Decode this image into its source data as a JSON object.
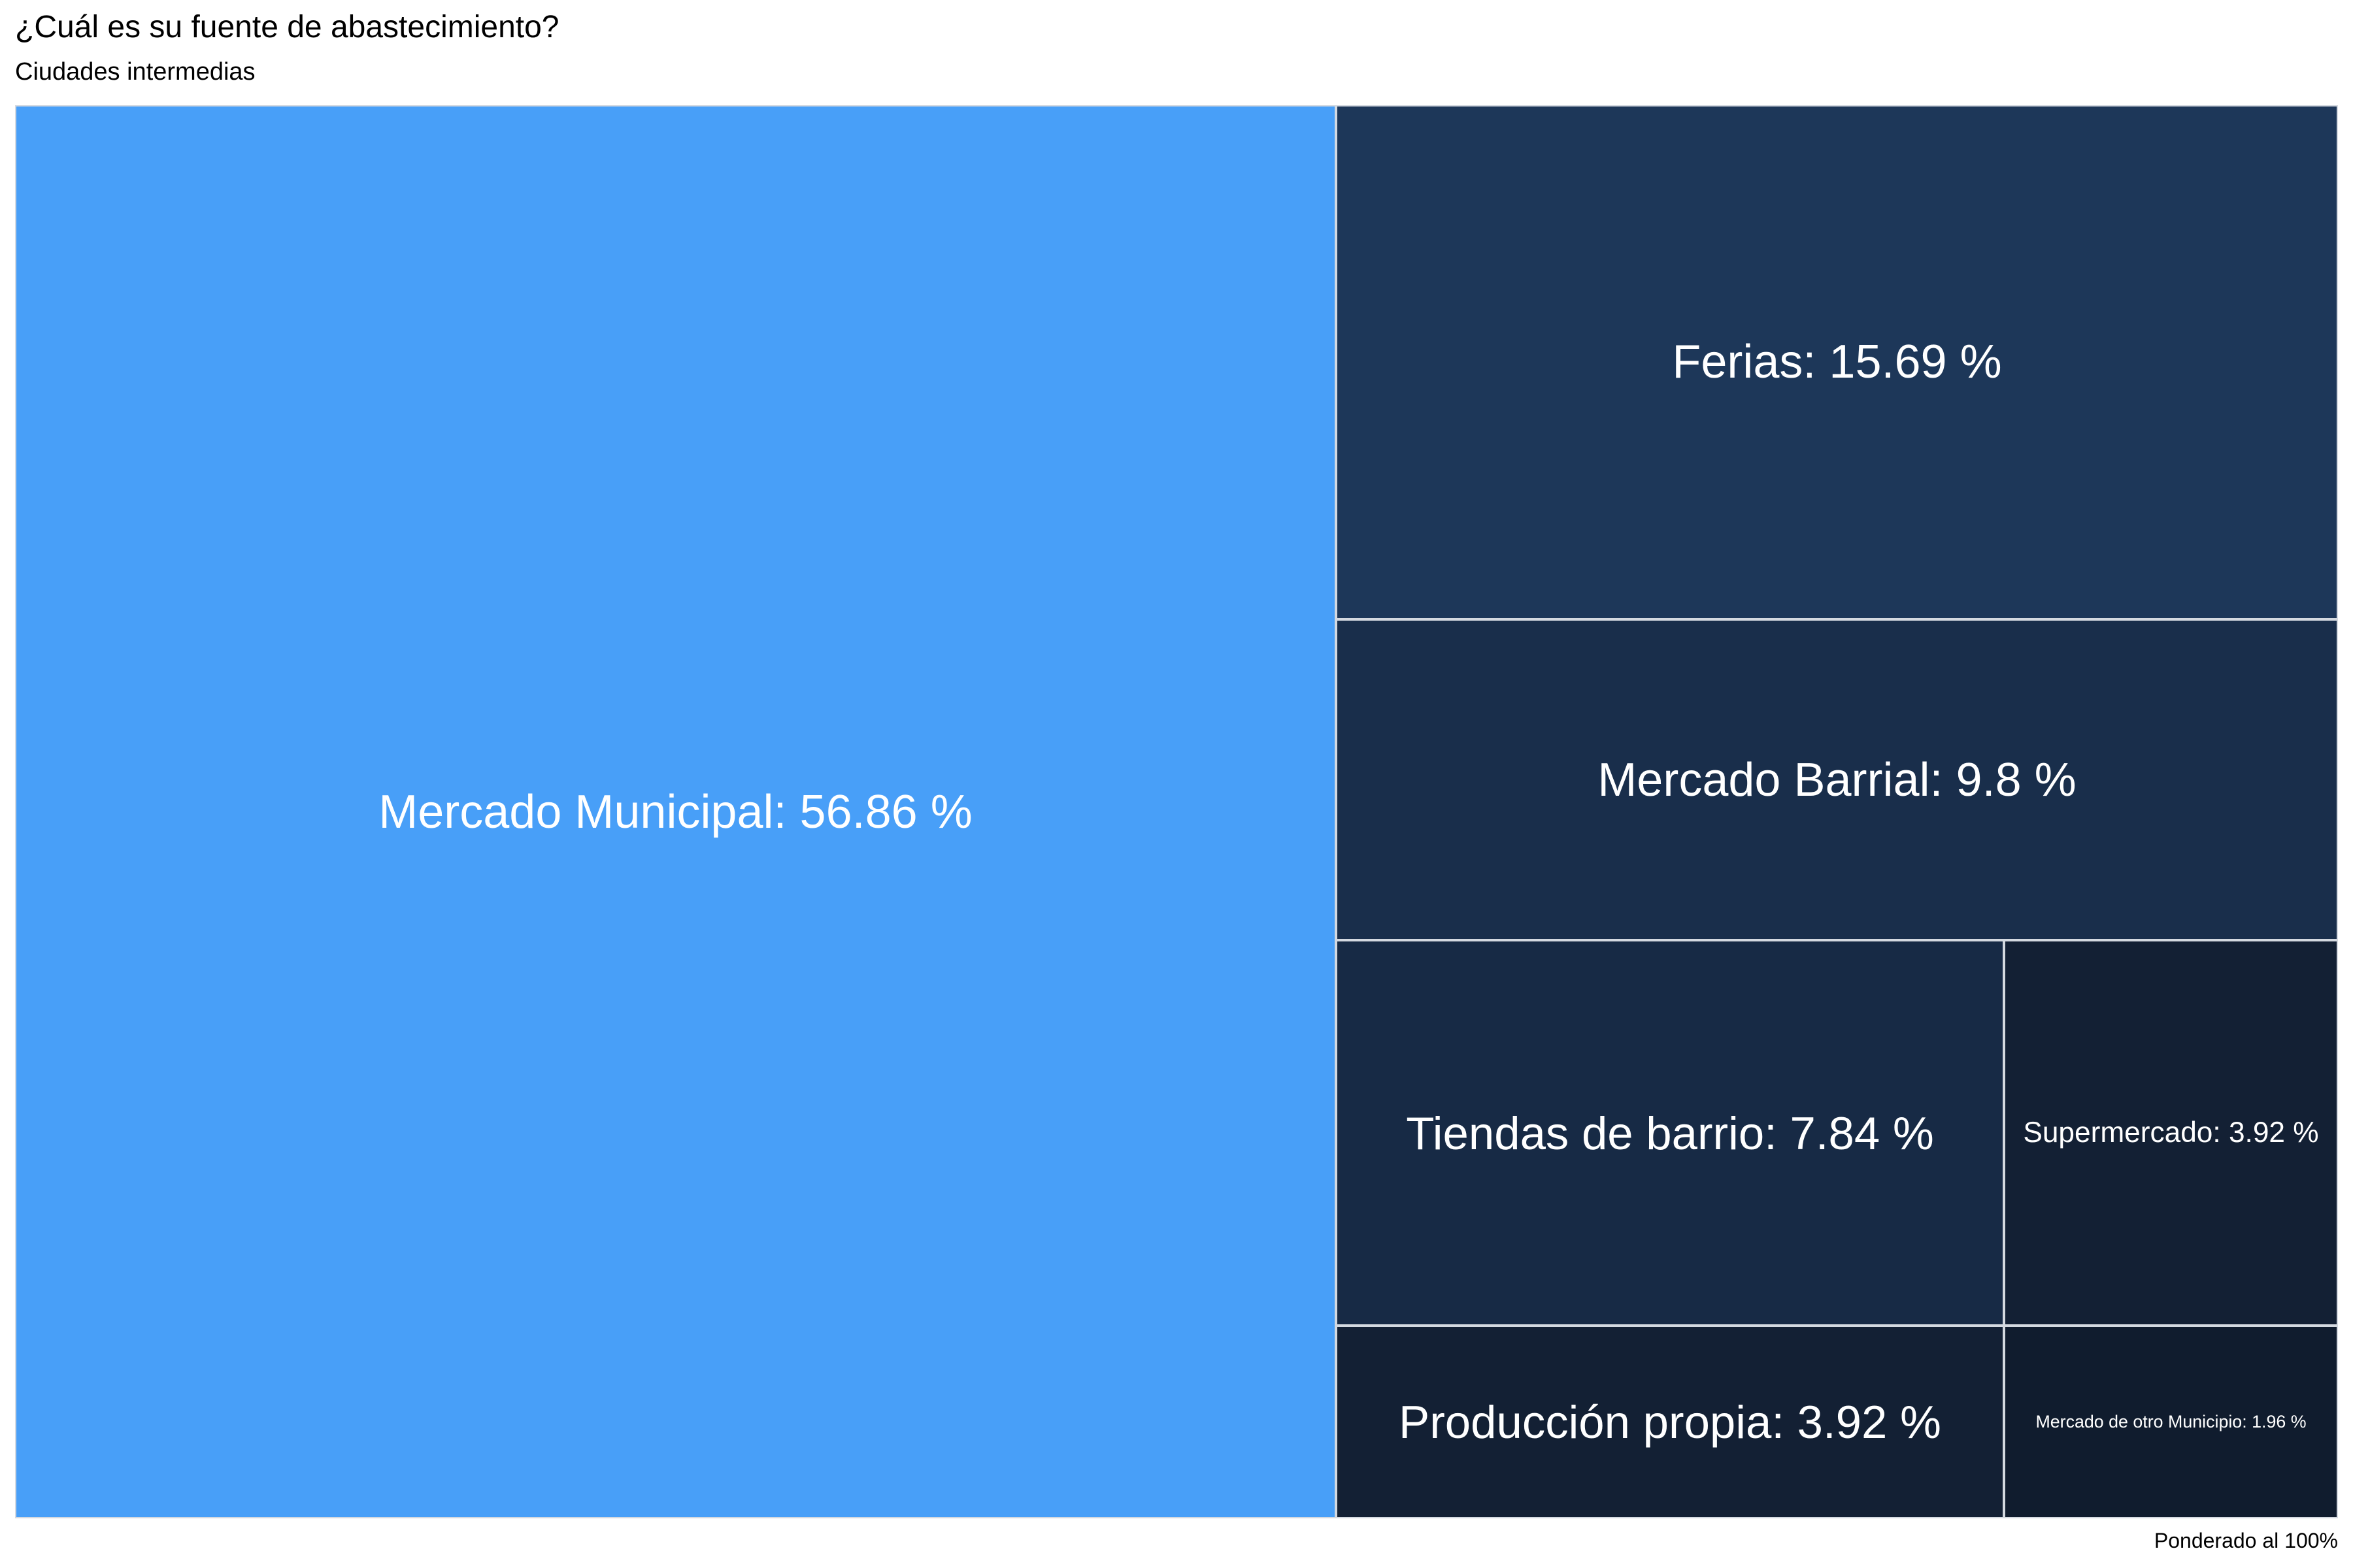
{
  "title": "¿Cuál es su fuente de abastecimiento?",
  "subtitle": "Ciudades intermedias",
  "caption": "Ponderado al 100%",
  "chart_data": {
    "type": "treemap",
    "title": "¿Cuál es su fuente de abastecimiento?",
    "subtitle": "Ciudades intermedias",
    "caption": "Ponderado al 100%",
    "unit": "%",
    "items": [
      {
        "name": "Mercado Municipal",
        "value": 56.86,
        "label": "Mercado Municipal: 56.86 %",
        "color": "#489ff8"
      },
      {
        "name": "Ferias",
        "value": 15.69,
        "label": "Ferias: 15.69 %",
        "color": "#1d3759"
      },
      {
        "name": "Mercado Barrial",
        "value": 9.8,
        "label": "Mercado Barrial: 9.8 %",
        "color": "#192e4b"
      },
      {
        "name": "Tiendas de barrio",
        "value": 7.84,
        "label": "Tiendas de barrio: 7.84 %",
        "color": "#172a45"
      },
      {
        "name": "Supermercado",
        "value": 3.92,
        "label": "Supermercado: 3.92 %",
        "color": "#132034"
      },
      {
        "name": "Producción propia",
        "value": 3.92,
        "label": "Producción propia: 3.92 %",
        "color": "#132034"
      },
      {
        "name": "Mercado de otro Municipio",
        "value": 1.96,
        "label": "Mercado de otro Municipio: 1.96 %",
        "color": "#101c2e"
      }
    ]
  }
}
